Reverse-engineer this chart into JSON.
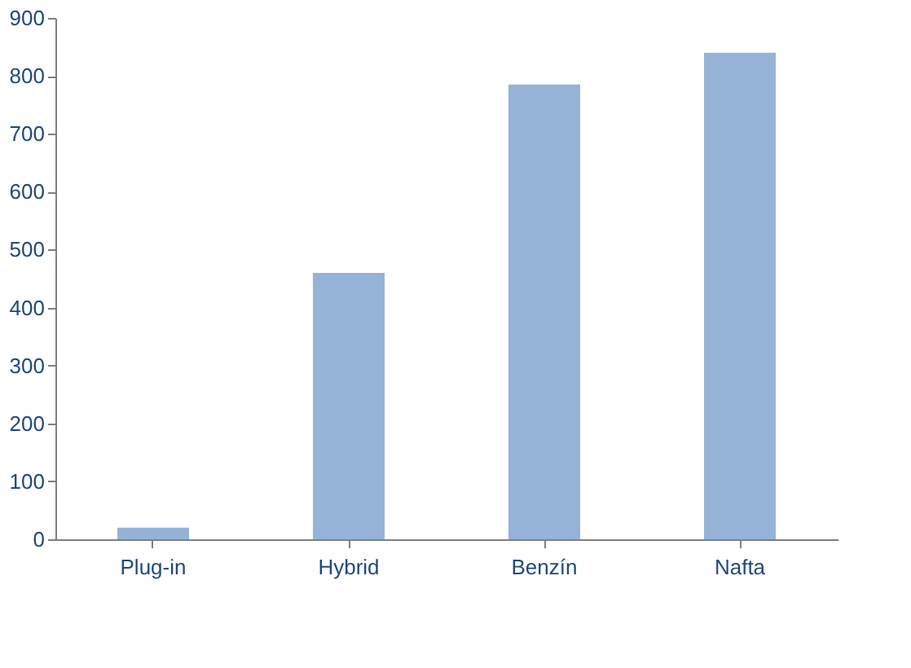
{
  "chart_data": {
    "type": "bar",
    "categories": [
      "Plug-in",
      "Hybrid",
      "Benzín",
      "Nafta"
    ],
    "values": [
      20,
      460,
      785,
      840
    ],
    "color": "#95b3d7",
    "ylim": [
      0,
      900
    ],
    "yticks": [
      0,
      100,
      200,
      300,
      400,
      500,
      600,
      700,
      800,
      900
    ],
    "grid": false
  }
}
